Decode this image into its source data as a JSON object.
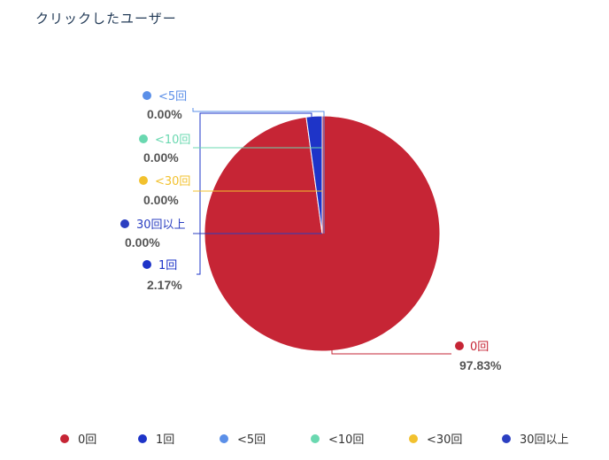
{
  "title": "クリックしたユーザー",
  "chart_data": {
    "type": "pie",
    "series": [
      {
        "name": "0回",
        "value": 97.83,
        "label": "97.83%",
        "color": "#c62535"
      },
      {
        "name": "1回",
        "value": 2.17,
        "label": "2.17%",
        "color": "#1e34c8"
      },
      {
        "name": "<5回",
        "value": 0.0,
        "label": "0.00%",
        "color": "#5b8fe8"
      },
      {
        "name": "<10回",
        "value": 0.0,
        "label": "0.00%",
        "color": "#6ad8b0"
      },
      {
        "name": "<30回",
        "value": 0.0,
        "label": "0.00%",
        "color": "#f2c12e"
      },
      {
        "name": "30回以上",
        "value": 0.0,
        "label": "0.00%",
        "color": "#2b3fc1"
      }
    ],
    "legend": "bottom"
  }
}
